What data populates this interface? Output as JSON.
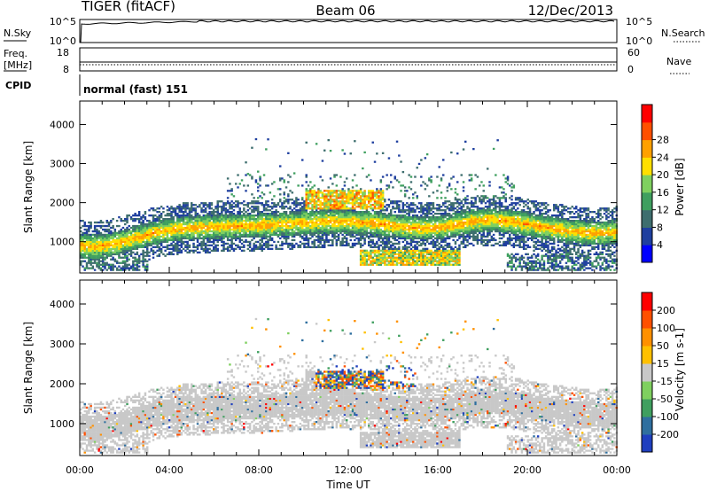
{
  "header": {
    "station": "TIGER (fitACF)",
    "beam": "Beam 06",
    "date": "12/Dec/2013"
  },
  "top_panels": {
    "nsky": {
      "left_label": "N.Sky",
      "right_label": "N.Search",
      "left_ticks": [
        "10^5",
        "10^0"
      ],
      "right_ticks": [
        "10^5",
        "10^0"
      ]
    },
    "freq": {
      "left_label_1": "Freq.",
      "left_label_2": "[MHz]",
      "right_label": "Nave",
      "left_ticks": [
        "18",
        "8"
      ],
      "right_ticks": [
        "60",
        "0"
      ]
    },
    "cpid": {
      "label": "CPID",
      "text": "normal (fast) 151"
    }
  },
  "chart_data": [
    {
      "type": "heatmap",
      "title": "",
      "ylabel": "Slant Range [km]",
      "xlabel": "",
      "xlim": [
        0,
        24
      ],
      "ylim": [
        200,
        4600
      ],
      "xticks": [
        "00:00",
        "04:00",
        "08:00",
        "12:00",
        "16:00",
        "20:00",
        "00:00"
      ],
      "yticks": [
        1000,
        2000,
        3000,
        4000
      ],
      "colorbar": {
        "label": "Power [dB]",
        "range": [
          0,
          32
        ],
        "ticks": [
          "4",
          "8",
          "12",
          "16",
          "20",
          "24",
          "28"
        ],
        "colors": [
          "#0000ff",
          "#1f3f9f",
          "#3e6e6e",
          "#3f9f5f",
          "#7fd05f",
          "#ffdf00",
          "#ffa000",
          "#ff5000",
          "#ff0000"
        ]
      }
    },
    {
      "type": "heatmap",
      "title": "",
      "ylabel": "Slant Range [km]",
      "xlabel": "Time UT",
      "xlim": [
        0,
        24
      ],
      "ylim": [
        200,
        4600
      ],
      "xticks": [
        "00:00",
        "04:00",
        "08:00",
        "12:00",
        "16:00",
        "20:00",
        "00:00"
      ],
      "yticks": [
        1000,
        2000,
        3000,
        4000
      ],
      "colorbar": {
        "label": "Velocity [m s-1]",
        "range": [
          -250,
          250
        ],
        "ticks": [
          "200",
          "100",
          "50",
          "15",
          "-15",
          "-50",
          "-100",
          "-200"
        ],
        "colors": [
          "#1f3fbf",
          "#2f6f9f",
          "#3f9f5f",
          "#7fd05f",
          "#c8c8c8",
          "#ffc000",
          "#ff9000",
          "#ff5000",
          "#ff0000"
        ]
      }
    }
  ]
}
